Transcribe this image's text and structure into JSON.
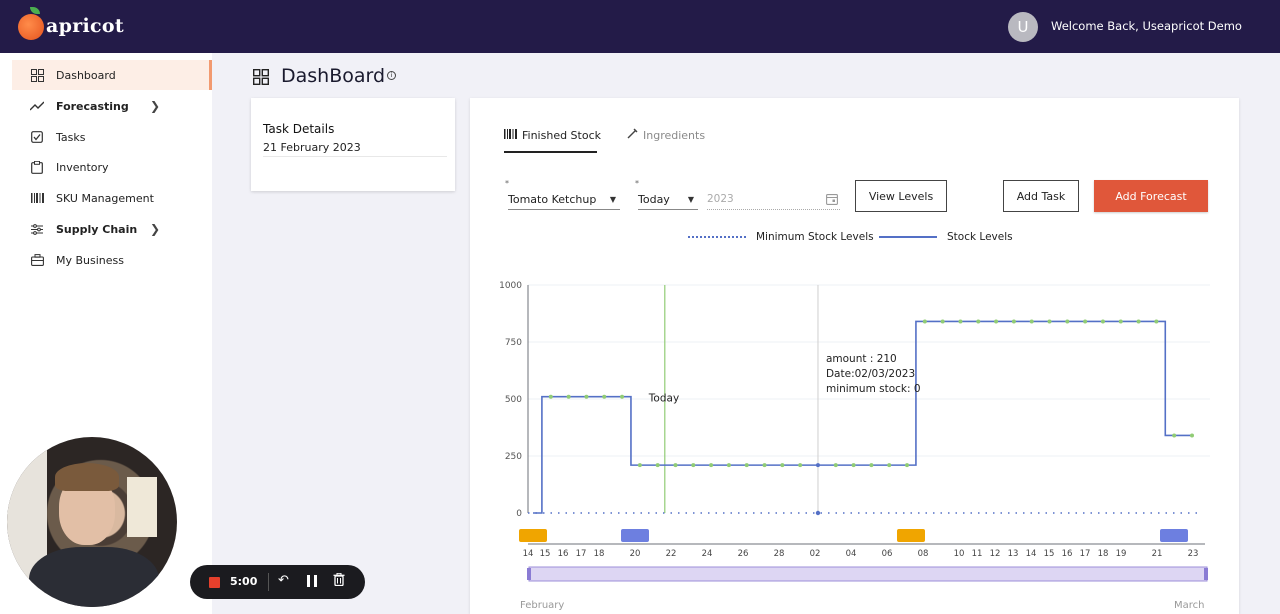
{
  "app": {
    "logo_text": "apricot"
  },
  "header": {
    "avatar_letter": "U",
    "welcome_text": "Welcome Back,  Useapricot Demo"
  },
  "sidebar": {
    "items": [
      {
        "label": "Dashboard",
        "icon": "dashboard-icon",
        "active": true
      },
      {
        "label": "Forecasting",
        "icon": "trend-icon",
        "expandable": true
      },
      {
        "label": "Tasks",
        "icon": "checkbox-icon"
      },
      {
        "label": "Inventory",
        "icon": "clipboard-icon"
      },
      {
        "label": "SKU Management",
        "icon": "barcode-icon"
      },
      {
        "label": "Supply Chain",
        "icon": "sliders-icon",
        "expandable": true
      },
      {
        "label": "My Business",
        "icon": "briefcase-icon"
      }
    ]
  },
  "page": {
    "title": "DashBoard"
  },
  "task_details": {
    "title": "Task Details",
    "date": "21 February 2023"
  },
  "tabs": [
    {
      "label": "Finished Stock",
      "icon": "barcode-icon",
      "active": true
    },
    {
      "label": "Ingredients",
      "icon": "pen-icon",
      "active": false
    }
  ],
  "filters": {
    "product": "Tomato Ketchup",
    "period": "Today",
    "year_placeholder": "2023"
  },
  "buttons": {
    "view_levels": "View Levels",
    "add_task": "Add Task",
    "add_forecast": "Add Forecast"
  },
  "colors": {
    "accent": "#e0573a",
    "series": "#5470c6",
    "points": "#91cc75",
    "today_line": "#91cc75"
  },
  "chart_data": {
    "type": "line",
    "legend": [
      "Minimum Stock Levels",
      "Stock Levels"
    ],
    "legend_position": "top",
    "ylim": [
      0,
      1000
    ],
    "y_ticks": [
      0,
      250,
      500,
      750,
      1000
    ],
    "x_ticks": [
      "14",
      "15",
      "16",
      "17",
      "18",
      "20",
      "22",
      "24",
      "26",
      "28",
      "02",
      "04",
      "06",
      "08",
      "10",
      "11",
      "12",
      "13",
      "14",
      "15",
      "16",
      "17",
      "18",
      "19",
      "21",
      "23"
    ],
    "x_months": [
      "February",
      "March"
    ],
    "series": [
      {
        "name": "Stock Levels",
        "step": true,
        "dates": [
          "14",
          "15",
          "16",
          "17",
          "18",
          "19",
          "20",
          "21",
          "22",
          "23",
          "24",
          "25",
          "26",
          "27",
          "28",
          "01",
          "02",
          "03",
          "04",
          "05",
          "06",
          "07",
          "08",
          "09",
          "10",
          "11",
          "12",
          "13",
          "14",
          "15",
          "16",
          "17",
          "18",
          "19",
          "20",
          "21",
          "22",
          "23"
        ],
        "values": [
          0,
          510,
          510,
          510,
          510,
          510,
          210,
          210,
          210,
          210,
          210,
          210,
          210,
          210,
          210,
          210,
          210,
          210,
          210,
          210,
          210,
          210,
          840,
          840,
          840,
          840,
          840,
          840,
          840,
          840,
          840,
          840,
          840,
          840,
          840,
          840,
          340,
          340
        ]
      },
      {
        "name": "Minimum Stock Levels",
        "constant": 0
      }
    ],
    "today_marker": {
      "label": "Today",
      "date": "21"
    },
    "tooltip": {
      "amount": "amount : 210",
      "date": "Date:02/03/2023",
      "min": "minimum stock: 0"
    }
  },
  "recorder": {
    "time": "5:00"
  }
}
